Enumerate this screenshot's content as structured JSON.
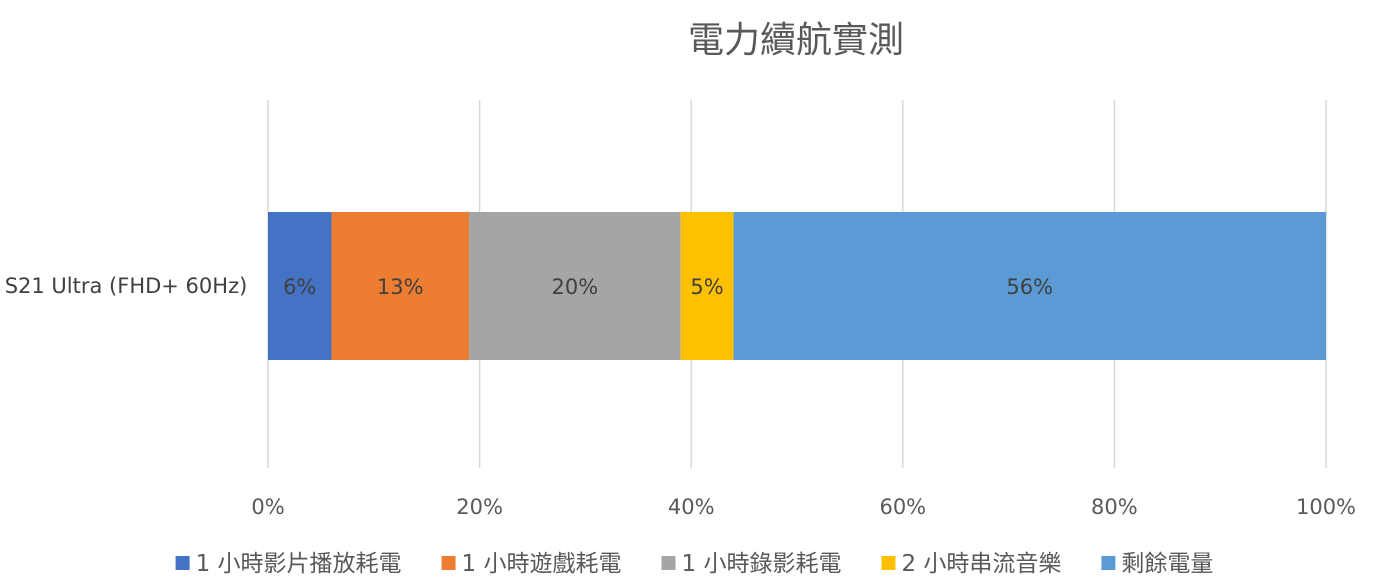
{
  "chart_data": {
    "type": "bar",
    "orientation": "horizontal",
    "stacked": "100%",
    "title": "電力續航實測",
    "categories": [
      "S21 Ultra (FHD+ 60Hz)"
    ],
    "series": [
      {
        "name": "1 小時影片播放耗電",
        "values": [
          6
        ],
        "label": "6%",
        "color": "#4472c4"
      },
      {
        "name": "1 小時遊戲耗電",
        "values": [
          13
        ],
        "label": "13%",
        "color": "#ed7d31"
      },
      {
        "name": "1 小時錄影耗電",
        "values": [
          20
        ],
        "label": "20%",
        "color": "#a5a5a5"
      },
      {
        "name": "2 小時串流音樂",
        "values": [
          5
        ],
        "label": "5%",
        "color": "#ffc000"
      },
      {
        "name": "剩餘電量",
        "values": [
          56
        ],
        "label": "56%",
        "color": "#5b9bd5"
      }
    ],
    "xlim": [
      0,
      100
    ],
    "xticks": [
      "0%",
      "20%",
      "40%",
      "60%",
      "80%",
      "100%"
    ],
    "grid": true,
    "legend_position": "bottom"
  }
}
